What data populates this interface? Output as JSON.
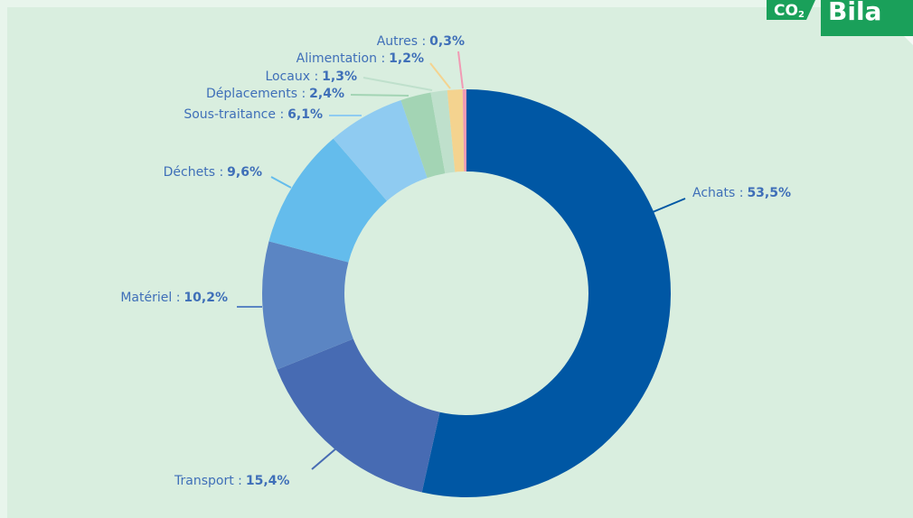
{
  "chart_data": {
    "type": "donut",
    "categories": [
      "Achats :",
      "Transport :",
      "Matériel :",
      "Déchets :",
      "Sous-traitance :",
      "Déplacements :",
      "Locaux :",
      "Alimentation :",
      "Autres :"
    ],
    "values": [
      53.5,
      15.4,
      10.2,
      9.6,
      6.1,
      2.4,
      1.3,
      1.2,
      0.3
    ],
    "value_labels": [
      "53,5%",
      "15,4%",
      "10,2%",
      "9,6%",
      "6,1%",
      "2,4%",
      "1,3%",
      "1,2%",
      "0,3%"
    ],
    "colors": [
      "#0057a4",
      "#476bb3",
      "#5b85c3",
      "#64bcec",
      "#8fcbf1",
      "#a3d4b4",
      "#bfe0cc",
      "#f4d38f",
      "#f19ab4"
    ]
  },
  "logo": {
    "co2": "CO",
    "sub": "2",
    "text": "Bila"
  }
}
